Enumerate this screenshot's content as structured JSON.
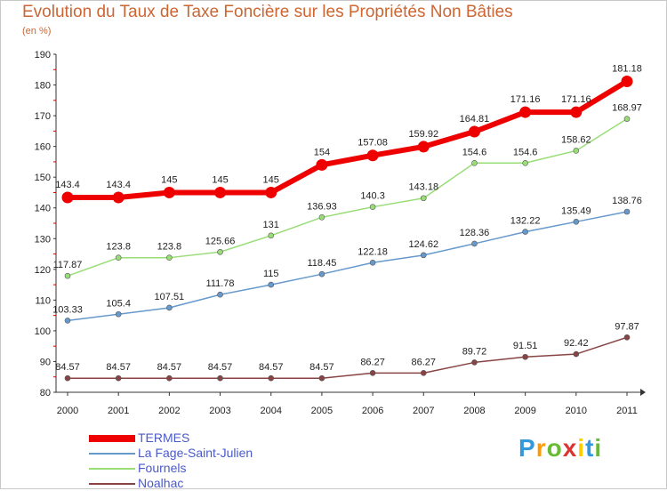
{
  "chart_data": {
    "type": "line",
    "title": "Evolution du Taux de Taxe Foncière sur les Propriétés Non Bâties",
    "subtitle": "(en %)",
    "x": [
      "2000",
      "2001",
      "2002",
      "2003",
      "2004",
      "2005",
      "2006",
      "2007",
      "2008",
      "2009",
      "2010",
      "2011"
    ],
    "yticks": [
      80,
      90,
      100,
      110,
      120,
      130,
      140,
      150,
      160,
      170,
      180,
      190
    ],
    "ylim": [
      80,
      190
    ],
    "grid": false,
    "legend_position": "bottom-left",
    "series": [
      {
        "name": "TERMES",
        "color": "#ee0000",
        "values": [
          143.4,
          143.4,
          145,
          145,
          145,
          154,
          157.08,
          159.92,
          164.81,
          171.16,
          171.16,
          181.18
        ],
        "labels": [
          "143.4",
          "143.4",
          "145",
          "145",
          "145",
          "154",
          "157.08",
          "159.92",
          "164.81",
          "171.16",
          "171.16",
          "181.18"
        ]
      },
      {
        "name": "La Fage-Saint-Julien",
        "color": "#6699cc",
        "values": [
          103.33,
          105.4,
          107.51,
          111.78,
          115,
          118.45,
          122.18,
          124.62,
          128.36,
          132.22,
          135.49,
          138.76
        ],
        "labels": [
          "103.33",
          "105.4",
          "107.51",
          "111.78",
          "115",
          "118.45",
          "122.18",
          "124.62",
          "128.36",
          "132.22",
          "135.49",
          "138.76"
        ]
      },
      {
        "name": "Fournels",
        "color": "#99dd77",
        "values": [
          117.87,
          123.8,
          123.8,
          125.66,
          131,
          136.93,
          140.3,
          143.18,
          154.6,
          154.6,
          158.62,
          168.97
        ],
        "labels": [
          "117.87",
          "123.8",
          "123.8",
          "125.66",
          "131",
          "136.93",
          "140.3",
          "143.18",
          "154.6",
          "154.6",
          "158.62",
          "168.97"
        ]
      },
      {
        "name": "Noalhac",
        "color": "#884444",
        "values": [
          84.57,
          84.57,
          84.57,
          84.57,
          84.57,
          84.57,
          86.27,
          86.27,
          89.72,
          91.51,
          92.42,
          97.87
        ],
        "labels": [
          "84.57",
          "84.57",
          "84.57",
          "84.57",
          "84.57",
          "84.57",
          "86.27",
          "86.27",
          "89.72",
          "91.51",
          "92.42",
          "97.87"
        ]
      }
    ]
  },
  "logo": {
    "letters": [
      "P",
      "r",
      "o",
      "x",
      "i",
      "t",
      "i"
    ],
    "colors": [
      "#3399dd",
      "#ff9900",
      "#66bb33",
      "#dd3333",
      "#ffcc00",
      "#3399dd",
      "#66bb33"
    ]
  }
}
